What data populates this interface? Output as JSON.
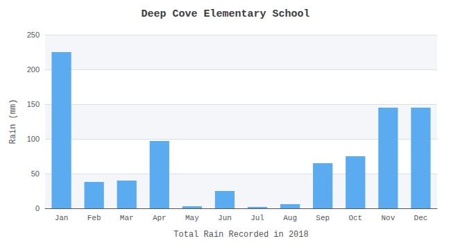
{
  "chart_data": {
    "type": "bar",
    "title": "Deep Cove Elementary School",
    "xlabel": "Total Rain Recorded in 2018",
    "ylabel": "Rain (mm)",
    "categories": [
      "Jan",
      "Feb",
      "Mar",
      "Apr",
      "May",
      "Jun",
      "Jul",
      "Aug",
      "Sep",
      "Oct",
      "Nov",
      "Dec"
    ],
    "values": [
      225,
      38,
      40,
      97,
      3,
      25,
      2,
      6,
      65,
      75,
      145,
      145
    ],
    "color": "#5aabf0",
    "ylim": [
      0,
      250
    ],
    "yticks": [
      0,
      50,
      100,
      150,
      200,
      250
    ],
    "grid": true
  }
}
